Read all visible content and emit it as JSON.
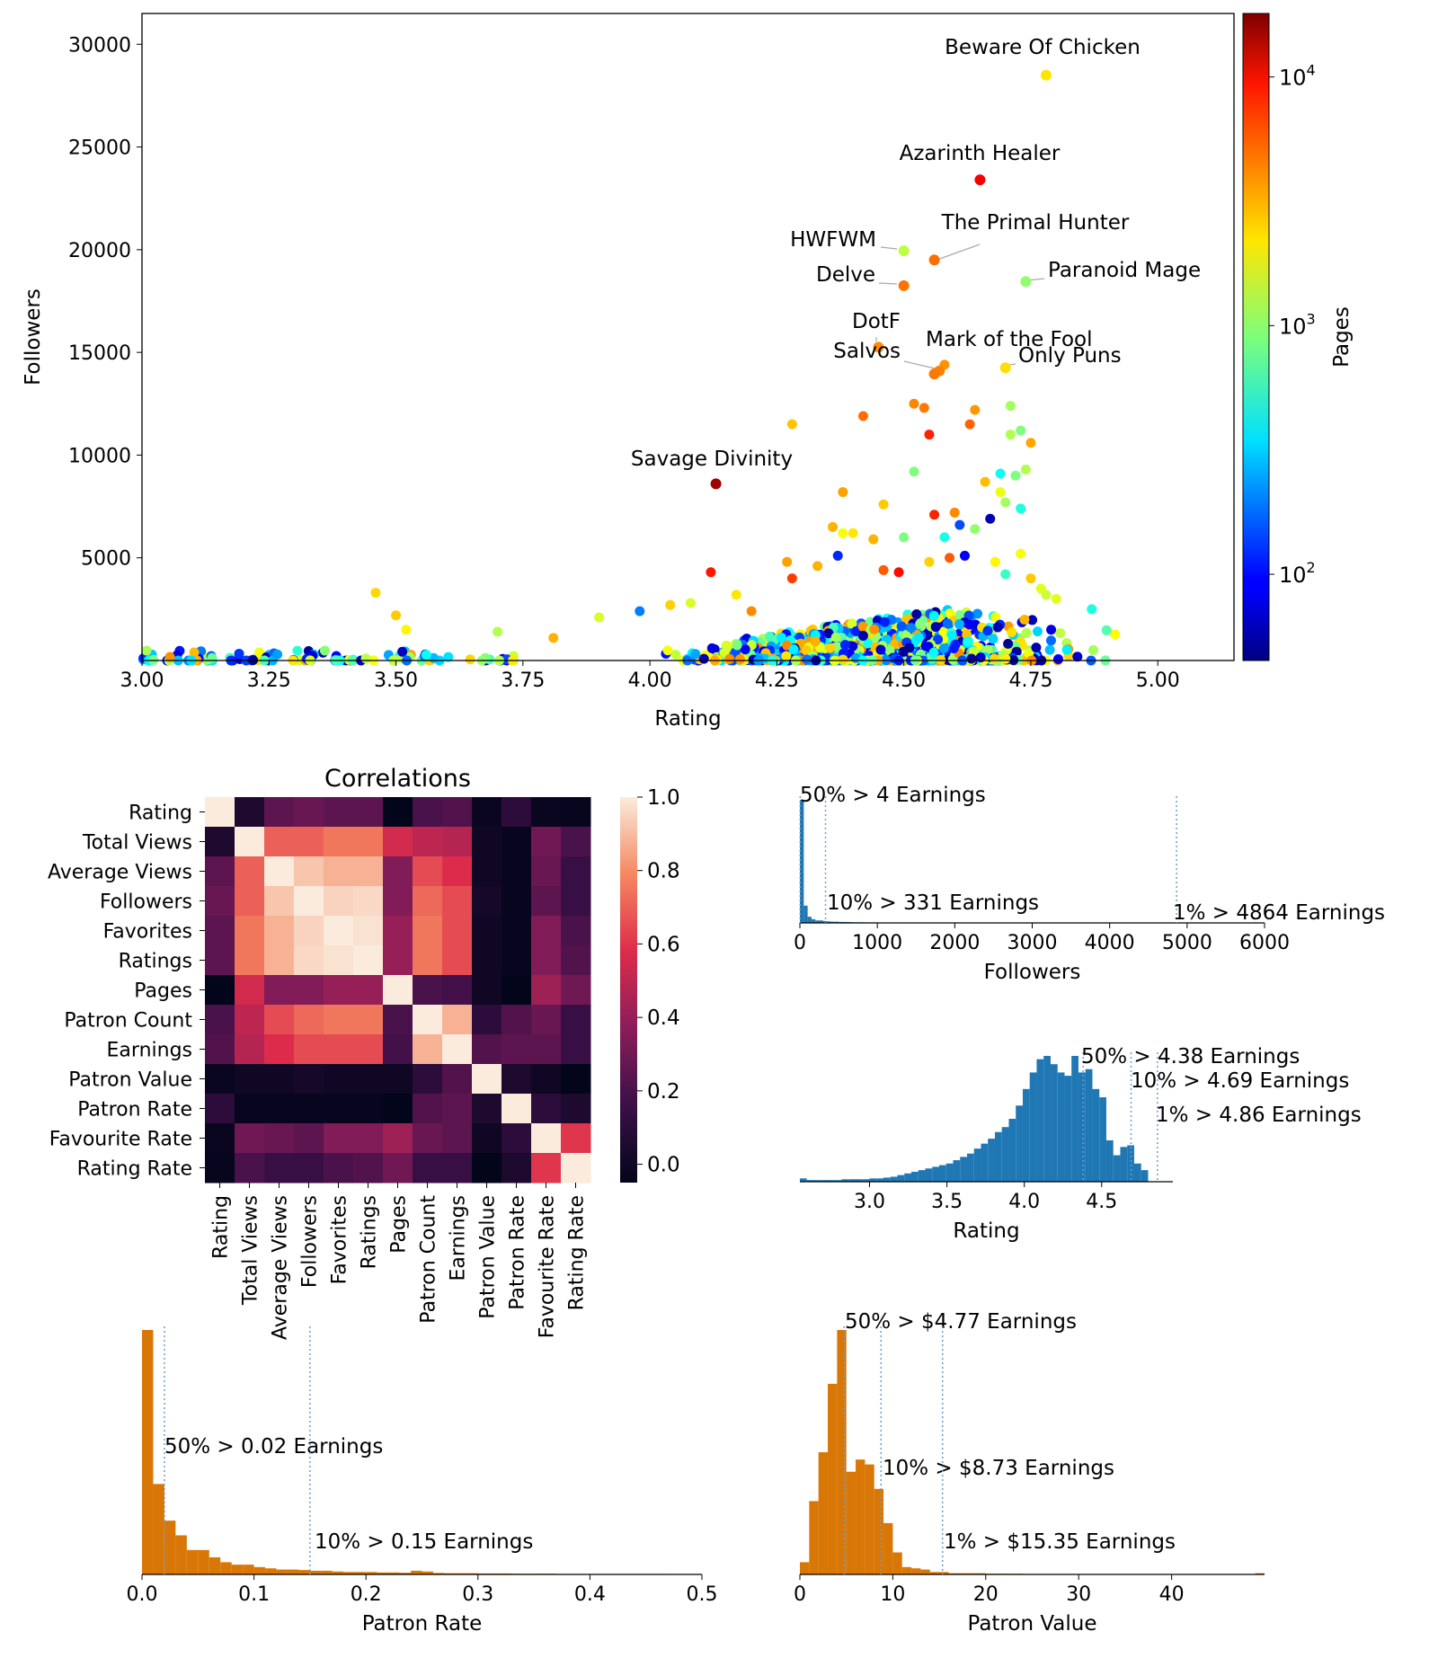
{
  "chart_data": [
    {
      "id": "scatter",
      "type": "scatter",
      "xlabel": "Rating",
      "ylabel": "Followers",
      "xlim": [
        3.0,
        5.15
      ],
      "ylim": [
        0,
        31500
      ],
      "xticks": [
        "3.00",
        "3.25",
        "3.50",
        "3.75",
        "4.00",
        "4.25",
        "4.50",
        "4.75",
        "5.00"
      ],
      "yticks": [
        "5000",
        "10000",
        "15000",
        "20000",
        "25000",
        "30000"
      ],
      "colorbar": {
        "label": "Pages",
        "scale": "log",
        "range": [
          45,
          18000
        ],
        "colormap": "jet",
        "ticks": [
          {
            "base": "10",
            "exp": "2",
            "value": 100
          },
          {
            "base": "10",
            "exp": "3",
            "value": 1000
          },
          {
            "base": "10",
            "exp": "4",
            "value": 10000
          }
        ]
      },
      "annotated_points": [
        {
          "label": "Beware Of Chicken",
          "x": 4.78,
          "y": 28500,
          "pages": 2200
        },
        {
          "label": "Azarinth Healer",
          "x": 4.65,
          "y": 23400,
          "pages": 9000
        },
        {
          "label": "The Primal Hunter",
          "x": 4.56,
          "y": 19500,
          "pages": 4500
        },
        {
          "label": "HWFWM",
          "x": 4.5,
          "y": 19950,
          "pages": 1300
        },
        {
          "label": "Delve",
          "x": 4.5,
          "y": 18250,
          "pages": 4300
        },
        {
          "label": "Paranoid Mage",
          "x": 4.74,
          "y": 18450,
          "pages": 1000
        },
        {
          "label": "DotF",
          "x": 4.45,
          "y": 15250,
          "pages": 3700
        },
        {
          "label": "Mark of the Fool",
          "x": 4.57,
          "y": 14100,
          "pages": 4000
        },
        {
          "label": "Salvos",
          "x": 4.56,
          "y": 13950,
          "pages": 4200
        },
        {
          "label": "Only Puns",
          "x": 4.7,
          "y": 14250,
          "pages": 2300
        },
        {
          "label": "Savage Divinity",
          "x": 4.13,
          "y": 8600,
          "pages": 15000
        }
      ],
      "other_points": [
        [
          3.46,
          3300,
          2400
        ],
        [
          3.5,
          2200,
          2600
        ],
        [
          3.52,
          1500,
          2000
        ],
        [
          4.28,
          11500,
          2700
        ],
        [
          4.38,
          8200,
          3300
        ],
        [
          4.42,
          11900,
          4500
        ],
        [
          4.12,
          4300,
          7500
        ],
        [
          4.55,
          11000,
          7000
        ],
        [
          4.63,
          11500,
          4800
        ],
        [
          4.64,
          12200,
          3500
        ],
        [
          4.54,
          12300,
          4200
        ],
        [
          4.52,
          12500,
          3900
        ],
        [
          4.58,
          14400,
          3600
        ],
        [
          4.71,
          12400,
          1100
        ],
        [
          4.73,
          11200,
          900
        ],
        [
          4.75,
          10600,
          3200
        ],
        [
          4.71,
          11000,
          1200
        ],
        [
          4.69,
          9100,
          450
        ],
        [
          4.74,
          9300,
          1200
        ],
        [
          4.72,
          9000,
          900
        ],
        [
          4.52,
          9200,
          900
        ],
        [
          4.38,
          6200,
          1800
        ],
        [
          4.36,
          6500,
          3000
        ],
        [
          4.4,
          6200,
          2200
        ],
        [
          4.46,
          7600,
          2600
        ],
        [
          4.56,
          7100,
          7000
        ],
        [
          4.6,
          7200,
          3800
        ],
        [
          4.66,
          8700,
          2800
        ],
        [
          4.69,
          8200,
          1700
        ],
        [
          4.7,
          7700,
          1100
        ],
        [
          4.73,
          7400,
          500
        ],
        [
          4.67,
          6900,
          60
        ],
        [
          4.61,
          6600,
          150
        ],
        [
          4.64,
          6400,
          1000
        ],
        [
          4.58,
          6000,
          500
        ],
        [
          4.62,
          5100,
          90
        ],
        [
          4.59,
          5000,
          5000
        ],
        [
          4.37,
          5100,
          120
        ],
        [
          4.44,
          5900,
          3000
        ],
        [
          4.27,
          4800,
          3300
        ],
        [
          4.28,
          4000,
          6000
        ],
        [
          4.33,
          4600,
          3000
        ],
        [
          4.49,
          4300,
          8000
        ],
        [
          4.46,
          4400,
          5000
        ],
        [
          4.5,
          6000,
          900
        ],
        [
          4.79,
          1500,
          80
        ],
        [
          4.87,
          2500,
          500
        ],
        [
          4.04,
          2700,
          2500
        ],
        [
          4.08,
          2800,
          1500
        ],
        [
          4.17,
          3200,
          2200
        ],
        [
          4.2,
          2400,
          3800
        ],
        [
          3.98,
          2400,
          200
        ],
        [
          3.9,
          2100,
          1500
        ],
        [
          3.81,
          1100,
          3000
        ],
        [
          3.7,
          1400,
          1200
        ],
        [
          4.73,
          5200,
          1800
        ],
        [
          4.75,
          4000,
          2600
        ],
        [
          4.77,
          3500,
          1600
        ],
        [
          4.78,
          3200,
          1400
        ],
        [
          4.8,
          3000,
          1600
        ],
        [
          4.68,
          4800,
          2000
        ],
        [
          4.7,
          4200,
          600
        ],
        [
          4.55,
          4800,
          2500
        ]
      ]
    },
    {
      "id": "heatmap",
      "type": "heatmap",
      "title": "Correlations",
      "labels": [
        "Rating",
        "Total Views",
        "Average Views",
        "Followers",
        "Favorites",
        "Ratings",
        "Pages",
        "Patron Count",
        "Earnings",
        "Patron Value",
        "Patron Rate",
        "Favourite Rate",
        "Rating Rate"
      ],
      "matrix": [
        [
          1.0,
          0.05,
          0.25,
          0.28,
          0.25,
          0.25,
          -0.05,
          0.2,
          0.22,
          -0.02,
          0.1,
          -0.02,
          -0.03
        ],
        [
          0.05,
          1.0,
          0.7,
          0.7,
          0.75,
          0.75,
          0.55,
          0.5,
          0.48,
          0.0,
          -0.03,
          0.3,
          0.2
        ],
        [
          0.25,
          0.7,
          1.0,
          0.92,
          0.88,
          0.88,
          0.35,
          0.65,
          0.58,
          0.0,
          -0.03,
          0.28,
          0.15
        ],
        [
          0.28,
          0.7,
          0.92,
          1.0,
          0.95,
          0.96,
          0.35,
          0.72,
          0.65,
          0.02,
          -0.03,
          0.25,
          0.15
        ],
        [
          0.25,
          0.75,
          0.88,
          0.95,
          1.0,
          0.98,
          0.4,
          0.75,
          0.65,
          0.0,
          -0.03,
          0.35,
          0.2
        ],
        [
          0.25,
          0.75,
          0.88,
          0.96,
          0.98,
          1.0,
          0.4,
          0.75,
          0.65,
          0.0,
          -0.03,
          0.35,
          0.22
        ],
        [
          -0.05,
          0.55,
          0.35,
          0.35,
          0.4,
          0.4,
          1.0,
          0.2,
          0.18,
          0.0,
          -0.05,
          0.42,
          0.3
        ],
        [
          0.2,
          0.5,
          0.65,
          0.72,
          0.75,
          0.75,
          0.2,
          1.0,
          0.88,
          0.1,
          0.22,
          0.28,
          0.15
        ],
        [
          0.22,
          0.48,
          0.58,
          0.65,
          0.65,
          0.65,
          0.18,
          0.88,
          1.0,
          0.22,
          0.25,
          0.25,
          0.15
        ],
        [
          -0.02,
          0.0,
          0.0,
          0.02,
          0.0,
          0.0,
          0.0,
          0.1,
          0.22,
          1.0,
          0.05,
          0.0,
          -0.05
        ],
        [
          0.1,
          -0.03,
          -0.03,
          -0.03,
          -0.03,
          -0.03,
          -0.05,
          0.22,
          0.25,
          0.05,
          1.0,
          0.1,
          0.05
        ],
        [
          -0.02,
          0.3,
          0.28,
          0.25,
          0.35,
          0.35,
          0.42,
          0.28,
          0.25,
          0.0,
          0.1,
          1.0,
          0.6
        ],
        [
          -0.03,
          0.2,
          0.15,
          0.15,
          0.2,
          0.22,
          0.3,
          0.15,
          0.15,
          -0.05,
          0.05,
          0.6,
          1.0
        ]
      ],
      "colorbar_range": [
        -0.05,
        1.0
      ],
      "colorbar_ticks": [
        "0.0",
        "0.2",
        "0.4",
        "0.6",
        "0.8",
        "1.0"
      ]
    },
    {
      "id": "hist_followers",
      "type": "bar",
      "xlabel": "Followers",
      "xlim": [
        0,
        6000
      ],
      "xticks": [
        "0",
        "1000",
        "2000",
        "3000",
        "4000",
        "5000",
        "6000"
      ],
      "color": "#1f77b4",
      "bin_edges_start": 0,
      "bin_width": 50,
      "counts": [
        100,
        14,
        5,
        3,
        2,
        2,
        1.5,
        1.2,
        1,
        1,
        0.8,
        0.8,
        0.7,
        0.6,
        0.5,
        0.5,
        0.5,
        0.4,
        0.4,
        0.4,
        0.3,
        0.3,
        0.3,
        0.3,
        0.2,
        0.2,
        0.2,
        0.2,
        0.2,
        0.2
      ],
      "thresholds": [
        {
          "x": 4,
          "text": "50% > 4 Earnings",
          "pos": "top"
        },
        {
          "x": 331,
          "text": "10% > 331 Earnings",
          "pos": "mid"
        },
        {
          "x": 4864,
          "text": "1% > 4864 Earnings",
          "pos": "bottom"
        }
      ]
    },
    {
      "id": "hist_rating",
      "type": "bar",
      "xlabel": "Rating",
      "xlim": [
        2.55,
        4.96
      ],
      "xticks": [
        "3.0",
        "3.5",
        "4.0",
        "4.5"
      ],
      "color": "#1f77b4",
      "bin_edges_start": 2.55,
      "bin_width": 0.045,
      "counts": [
        2,
        1,
        1,
        1,
        1,
        1,
        1.5,
        1.5,
        1.5,
        1.5,
        2,
        2,
        2.5,
        3,
        4,
        5,
        6,
        7,
        8,
        9,
        10,
        11,
        13,
        15,
        17,
        20,
        23,
        26,
        30,
        33,
        38,
        46,
        56,
        66,
        74,
        76,
        71,
        66,
        64,
        76,
        66,
        68,
        56,
        51,
        25,
        16,
        21,
        22,
        11,
        7
      ],
      "thresholds": [
        {
          "x": 4.38,
          "text": "50% > 4.38 Earnings"
        },
        {
          "x": 4.69,
          "text": "10% > 4.69 Earnings"
        },
        {
          "x": 4.86,
          "text": "1% > 4.86 Earnings"
        }
      ]
    },
    {
      "id": "hist_patron_rate",
      "type": "bar",
      "xlabel": "Patron Rate",
      "xlim": [
        0,
        0.5
      ],
      "xticks": [
        "0.0",
        "0.1",
        "0.2",
        "0.3",
        "0.4",
        "0.5"
      ],
      "color": "#d97706",
      "bin_edges_start": 0,
      "bin_width": 0.01,
      "counts": [
        100,
        37,
        22,
        16,
        10,
        10,
        7,
        5,
        4,
        4,
        3,
        2.5,
        2,
        2,
        1.8,
        1.5,
        1.5,
        1.2,
        1,
        1,
        1,
        0.8,
        0.8,
        0.7,
        1.5,
        1.2,
        0.6,
        0.5,
        0.5,
        0.5,
        0.4,
        0.4,
        0.4,
        0.3,
        0.3,
        0.3,
        0.3,
        0.2,
        0.2,
        0.2,
        0.2,
        0.2,
        0.2,
        0.2,
        0.2,
        0.2,
        0.2,
        0.1,
        0.1,
        0.1
      ],
      "thresholds": [
        {
          "x": 0.02,
          "text": "50% > 0.02 Earnings"
        },
        {
          "x": 0.15,
          "text": "10% > 0.15 Earnings"
        }
      ]
    },
    {
      "id": "hist_patron_value",
      "type": "bar",
      "xlabel": "Patron Value",
      "xlim": [
        0,
        50
      ],
      "xticks": [
        "0",
        "10",
        "20",
        "30",
        "40"
      ],
      "color": "#d97706",
      "bin_edges_start": 0,
      "bin_width": 1,
      "counts": [
        5,
        30,
        50,
        78,
        100,
        42,
        47,
        45,
        35,
        21,
        9,
        3,
        2.5,
        2,
        1,
        1,
        0.5,
        0.5,
        0.5,
        0.5,
        0.3,
        0.3,
        0.3,
        0.3,
        0.2,
        0.2,
        0.2,
        0.2,
        0.2,
        0.2,
        0,
        0,
        0,
        0,
        0,
        0,
        0,
        0,
        0,
        0,
        0,
        0,
        0,
        0,
        0,
        0,
        0,
        0,
        0,
        0.5
      ],
      "thresholds": [
        {
          "x": 4.77,
          "text": "50% > $4.77 Earnings"
        },
        {
          "x": 8.73,
          "text": "10% > $8.73 Earnings"
        },
        {
          "x": 15.35,
          "text": "1% > $15.35 Earnings"
        }
      ]
    }
  ]
}
